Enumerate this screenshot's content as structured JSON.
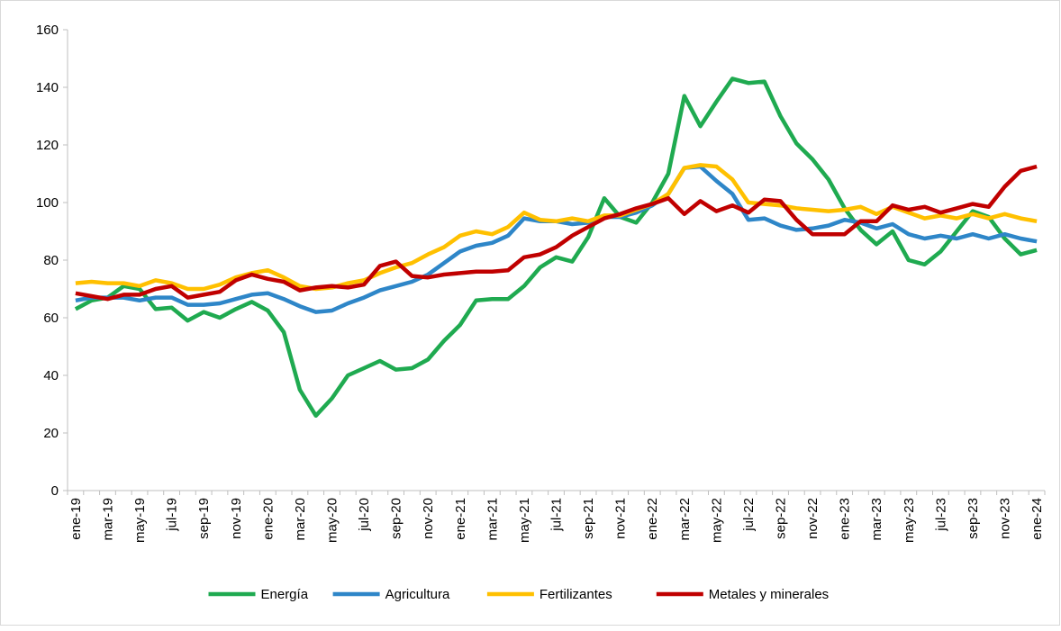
{
  "chart_data": {
    "type": "line",
    "categories": [
      "ene-19",
      null,
      "mar-19",
      null,
      "may-19",
      null,
      "jul-19",
      null,
      "sep-19",
      null,
      "nov-19",
      null,
      "ene-20",
      null,
      "mar-20",
      null,
      "may-20",
      null,
      "jul-20",
      null,
      "sep-20",
      null,
      "nov-20",
      null,
      "ene-21",
      null,
      "mar-21",
      null,
      "may-21",
      null,
      "jul-21",
      null,
      "sep-21",
      null,
      "nov-21",
      null,
      "ene-22",
      null,
      "mar-22",
      null,
      "may-22",
      null,
      "jul-22",
      null,
      "sep-22",
      null,
      "nov-22",
      null,
      "ene-23",
      null,
      "mar-23",
      null,
      "may-23",
      null,
      "jul-23",
      null,
      "sep-23",
      null,
      "nov-23",
      null,
      "ene-24"
    ],
    "series": [
      {
        "name": "Energía",
        "color": "#1faa50",
        "values": [
          63,
          66,
          67,
          71,
          70,
          63,
          63.5,
          59,
          62,
          60,
          63,
          65.5,
          62.5,
          55,
          35,
          26,
          32,
          40,
          42.5,
          45,
          42,
          42.5,
          45.5,
          52,
          57.5,
          66,
          66.5,
          66.5,
          71,
          77.5,
          81,
          79.5,
          88,
          101.5,
          95,
          93,
          100,
          110,
          137,
          126.5,
          135,
          143,
          141.5,
          142,
          130,
          120.5,
          115,
          108,
          98,
          90.5,
          85.5,
          90,
          80,
          78.5,
          83,
          90,
          97,
          95,
          87.5,
          82,
          83.5
        ]
      },
      {
        "name": "Agricultura",
        "color": "#2e86c8",
        "values": [
          66,
          67,
          67,
          67,
          66,
          67,
          67,
          64.5,
          64.5,
          65,
          66.5,
          68,
          68.5,
          66.5,
          64,
          62,
          62.5,
          65,
          67,
          69.5,
          71,
          72.5,
          75,
          79,
          83,
          85,
          86,
          88.5,
          94.5,
          93.5,
          93.5,
          92.5,
          93,
          95,
          95,
          96.5,
          99,
          103,
          112,
          112.5,
          107.5,
          103,
          94,
          94.5,
          92,
          90.5,
          91,
          92,
          94,
          93,
          91,
          92.5,
          89,
          87.5,
          88.5,
          87.5,
          89,
          87.5,
          89,
          87.5,
          86.5
        ]
      },
      {
        "name": "Fertilizantes",
        "color": "#ffc000",
        "values": [
          72,
          72.5,
          72,
          72,
          71,
          73,
          72,
          70,
          70,
          71.5,
          74,
          75.5,
          76.5,
          74,
          71,
          70,
          70.5,
          72,
          73,
          75.5,
          77.5,
          79,
          82,
          84.5,
          88.5,
          90,
          89,
          91.5,
          96.5,
          94,
          93.5,
          94.5,
          93.5,
          95.5,
          95.5,
          97.5,
          99.5,
          103,
          112,
          113,
          112.5,
          108,
          100,
          99.5,
          99,
          98,
          97.5,
          97,
          97.5,
          98.5,
          96,
          98.5,
          96.5,
          94.5,
          95.5,
          94.5,
          96,
          94.5,
          96,
          94.5,
          93.5
        ]
      },
      {
        "name": "Metales y minerales",
        "color": "#c00000",
        "values": [
          68.5,
          67.5,
          66.5,
          68,
          68,
          70,
          71,
          67,
          68,
          69,
          73,
          75,
          73.5,
          72.5,
          69.5,
          70.5,
          71,
          70.5,
          71.5,
          78,
          79.5,
          74.5,
          74,
          75,
          75.5,
          76,
          76,
          76.5,
          81,
          82,
          84.5,
          88.5,
          91.5,
          94.5,
          96,
          98,
          99.5,
          101.5,
          96,
          100.5,
          97,
          99,
          96.5,
          101,
          100.5,
          94,
          89,
          89,
          89,
          93.5,
          93.5,
          99,
          97.5,
          98.5,
          96.5,
          98,
          99.5,
          98.5,
          105.5,
          111,
          112.5
        ]
      }
    ],
    "ylim": [
      0,
      160
    ],
    "yticks": [
      0,
      20,
      40,
      60,
      80,
      100,
      120,
      140,
      160
    ],
    "grid": false,
    "legend": "bottom"
  }
}
